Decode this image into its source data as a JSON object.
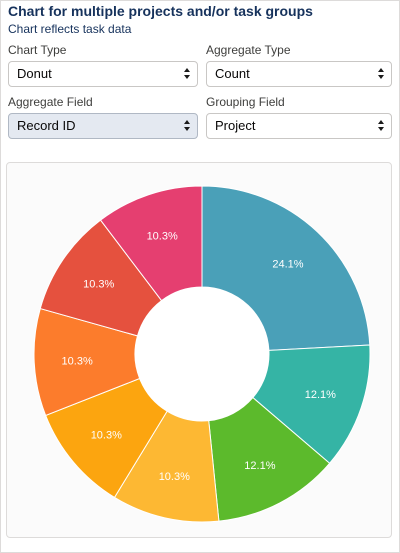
{
  "header": {
    "title": "Chart for multiple projects and/or task groups",
    "subtitle": "Chart reflects task data"
  },
  "fields": {
    "chart_type": {
      "label": "Chart Type",
      "value": "Donut"
    },
    "aggregate_type": {
      "label": "Aggregate Type",
      "value": "Count"
    },
    "aggregate_field": {
      "label": "Aggregate Field",
      "value": "Record ID"
    },
    "grouping_field": {
      "label": "Grouping Field",
      "value": "Project"
    }
  },
  "chart_data": {
    "type": "pie",
    "variant": "donut",
    "values": [
      24.1,
      12.1,
      12.1,
      10.3,
      10.3,
      10.3,
      10.3,
      10.3
    ],
    "labels": [
      "24.1%",
      "12.1%",
      "12.1%",
      "10.3%",
      "10.3%",
      "10.3%",
      "10.3%",
      "10.3%"
    ],
    "colors": [
      "#4aa0b8",
      "#35b4a5",
      "#5cba2c",
      "#fdb833",
      "#fca50f",
      "#fc7c2c",
      "#e5513e",
      "#e53f70"
    ],
    "start_angle": "12 o'clock",
    "direction": "clockwise",
    "legend": "none"
  }
}
